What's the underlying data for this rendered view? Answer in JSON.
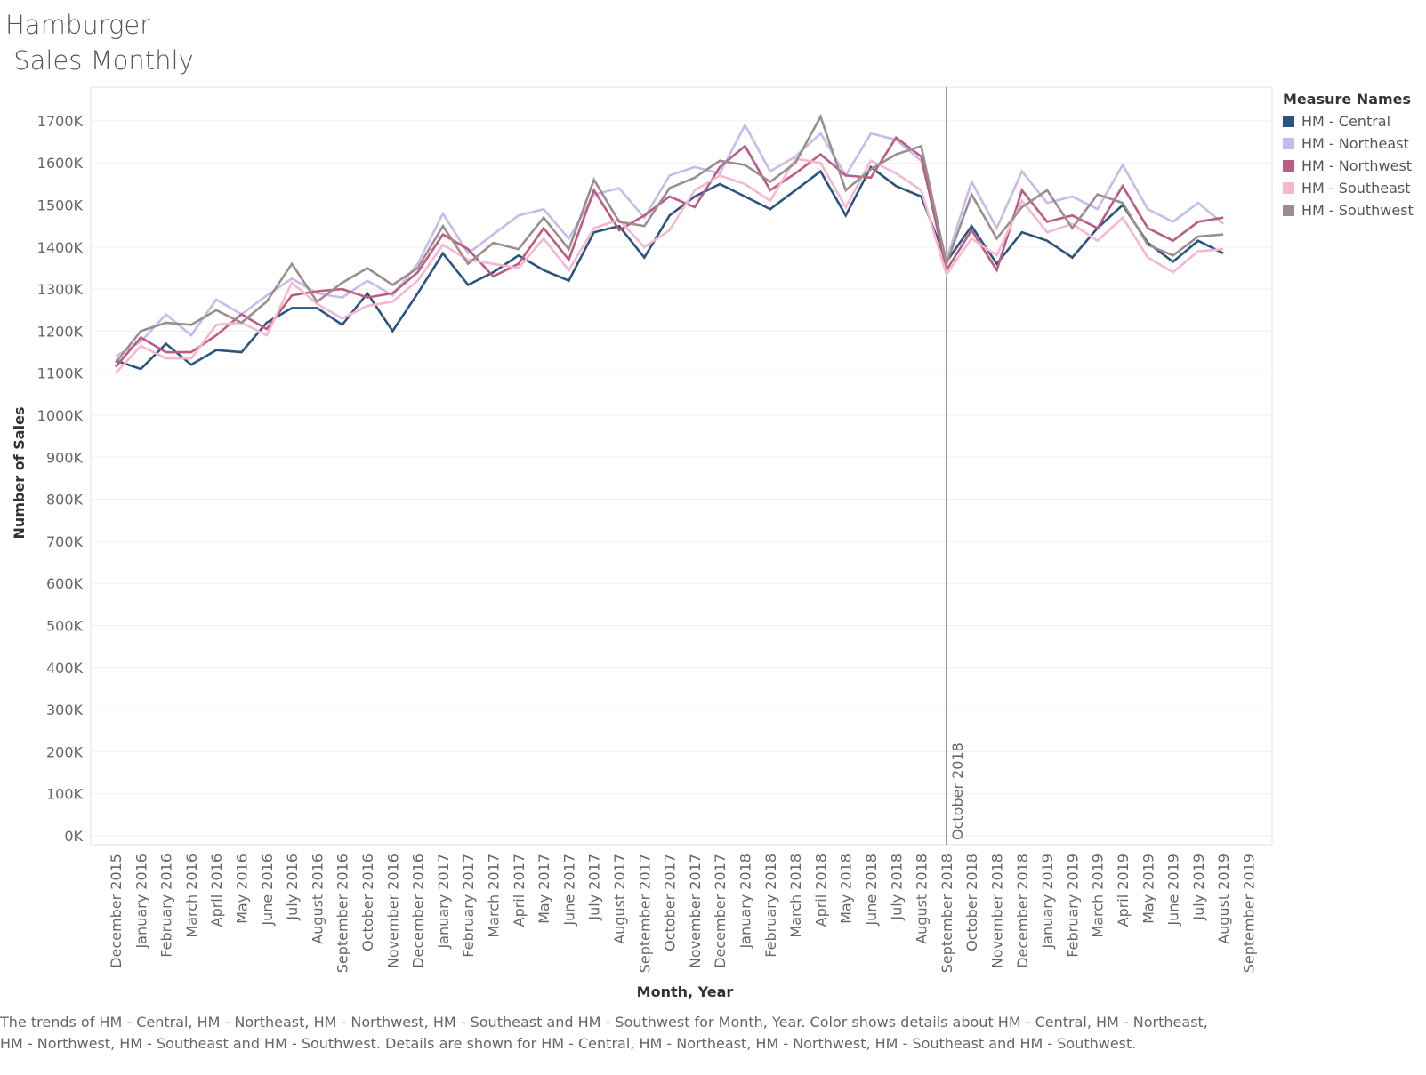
{
  "chart_data": {
    "type": "line",
    "title": "Hamburger\n Sales Monthly",
    "xlabel": "Month, Year",
    "ylabel": "Number of Sales",
    "ylim": [
      0,
      1800000
    ],
    "yticks": [
      0,
      100000,
      200000,
      300000,
      400000,
      500000,
      600000,
      700000,
      800000,
      900000,
      1000000,
      1100000,
      1200000,
      1300000,
      1400000,
      1500000,
      1600000,
      1700000
    ],
    "ytick_labels": [
      "0K",
      "100K",
      "200K",
      "300K",
      "400K",
      "500K",
      "600K",
      "700K",
      "800K",
      "900K",
      "1000K",
      "1100K",
      "1200K",
      "1300K",
      "1400K",
      "1500K",
      "1600K",
      "1700K"
    ],
    "grid": true,
    "legend_position": "top-right",
    "categories": [
      "December 2015",
      "January 2016",
      "February 2016",
      "March 2016",
      "April 2016",
      "May 2016",
      "June 2016",
      "July 2016",
      "August 2016",
      "September 2016",
      "October 2016",
      "November 2016",
      "December 2016",
      "January 2017",
      "February 2017",
      "March 2017",
      "April 2017",
      "May 2017",
      "June 2017",
      "July 2017",
      "August 2017",
      "September 2017",
      "October 2017",
      "November 2017",
      "December 2017",
      "January 2018",
      "February 2018",
      "March 2018",
      "April 2018",
      "May 2018",
      "June 2018",
      "July 2018",
      "August 2018",
      "September 2018",
      "October 2018",
      "November 2018",
      "December 2018",
      "January 2019",
      "February 2019",
      "March 2019",
      "April 2019",
      "May 2019",
      "June 2019",
      "July 2019",
      "August 2019",
      "September 2019"
    ],
    "reference_line": {
      "at": "September 2018",
      "label": "October 2018"
    },
    "legend_title": "Measure Names",
    "series": [
      {
        "name": "HM - Central",
        "color": "#2b5580",
        "values": [
          1130000,
          1110000,
          1170000,
          1120000,
          1155000,
          1150000,
          1220000,
          1255000,
          1255000,
          1215000,
          1290000,
          1200000,
          1290000,
          1385000,
          1310000,
          1340000,
          1380000,
          1345000,
          1320000,
          1435000,
          1450000,
          1375000,
          1475000,
          1520000,
          1550000,
          1520000,
          1490000,
          1535000,
          1580000,
          1475000,
          1590000,
          1545000,
          1520000,
          1365000,
          1450000,
          1360000,
          1435000,
          1415000,
          1375000,
          1445000,
          1500000,
          1410000,
          1365000,
          1415000,
          1385000,
          null
        ]
      },
      {
        "name": "HM - Northeast",
        "color": "#c5bce9",
        "values": [
          1140000,
          1175000,
          1240000,
          1190000,
          1275000,
          1240000,
          1285000,
          1325000,
          1290000,
          1280000,
          1320000,
          1285000,
          1360000,
          1480000,
          1385000,
          1430000,
          1475000,
          1490000,
          1420000,
          1525000,
          1540000,
          1470000,
          1570000,
          1590000,
          1575000,
          1690000,
          1580000,
          1615000,
          1670000,
          1570000,
          1670000,
          1655000,
          1605000,
          1370000,
          1555000,
          1445000,
          1580000,
          1505000,
          1520000,
          1490000,
          1595000,
          1490000,
          1460000,
          1505000,
          1455000,
          null
        ]
      },
      {
        "name": "HM - Northwest",
        "color": "#bd5b82",
        "values": [
          1115000,
          1185000,
          1150000,
          1150000,
          1190000,
          1240000,
          1205000,
          1285000,
          1295000,
          1300000,
          1280000,
          1290000,
          1340000,
          1430000,
          1395000,
          1330000,
          1360000,
          1445000,
          1370000,
          1535000,
          1440000,
          1475000,
          1520000,
          1495000,
          1590000,
          1640000,
          1535000,
          1575000,
          1620000,
          1570000,
          1565000,
          1660000,
          1615000,
          1345000,
          1440000,
          1345000,
          1535000,
          1460000,
          1475000,
          1445000,
          1545000,
          1445000,
          1415000,
          1460000,
          1470000,
          null
        ]
      },
      {
        "name": "HM - Southeast",
        "color": "#f6b8cf",
        "values": [
          1100000,
          1165000,
          1135000,
          1135000,
          1215000,
          1220000,
          1190000,
          1315000,
          1265000,
          1230000,
          1260000,
          1270000,
          1320000,
          1405000,
          1370000,
          1360000,
          1350000,
          1420000,
          1345000,
          1445000,
          1465000,
          1400000,
          1440000,
          1535000,
          1570000,
          1550000,
          1510000,
          1610000,
          1600000,
          1495000,
          1605000,
          1575000,
          1535000,
          1335000,
          1420000,
          1380000,
          1510000,
          1435000,
          1455000,
          1415000,
          1470000,
          1375000,
          1340000,
          1390000,
          1395000,
          null
        ]
      },
      {
        "name": "HM - Southwest",
        "color": "#9c8e8c",
        "values": [
          1125000,
          1200000,
          1220000,
          1215000,
          1250000,
          1220000,
          1270000,
          1360000,
          1270000,
          1315000,
          1350000,
          1310000,
          1350000,
          1450000,
          1360000,
          1410000,
          1395000,
          1470000,
          1395000,
          1560000,
          1460000,
          1450000,
          1540000,
          1565000,
          1605000,
          1595000,
          1555000,
          1600000,
          1710000,
          1535000,
          1585000,
          1620000,
          1640000,
          1360000,
          1525000,
          1420000,
          1495000,
          1535000,
          1445000,
          1525000,
          1505000,
          1405000,
          1380000,
          1425000,
          1430000,
          null
        ]
      }
    ]
  },
  "caption": "The trends of HM - Central, HM - Northeast, HM - Northwest, HM - Southeast and HM - Southwest for Month, Year.  Color shows details about HM - Central, HM - Northeast, HM - Northwest, HM - Southeast and HM - Southwest.  Details are shown for HM - Central, HM - Northeast, HM - Northwest, HM - Southeast and HM - Southwest."
}
